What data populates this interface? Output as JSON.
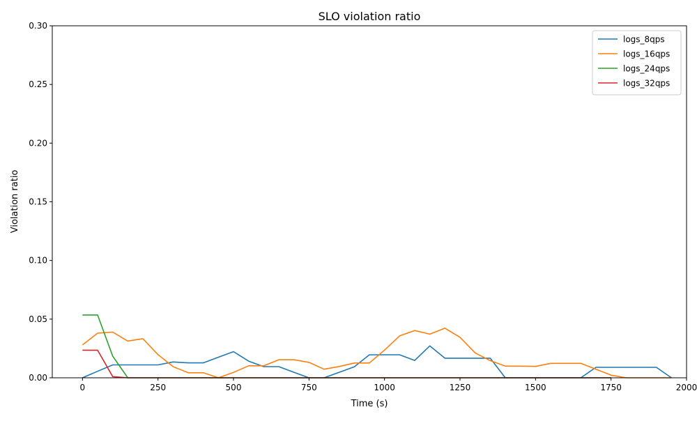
{
  "chart_data": {
    "type": "line",
    "title": "SLO violation ratio",
    "xlabel": "Time (s)",
    "ylabel": "Violation ratio",
    "xlim": [
      -100,
      2000
    ],
    "ylim": [
      0,
      0.3
    ],
    "xticks": [
      0,
      250,
      500,
      750,
      1000,
      1250,
      1500,
      1750,
      2000
    ],
    "yticks": [
      0.0,
      0.05,
      0.1,
      0.15,
      0.2,
      0.25,
      0.3
    ],
    "xtick_labels": [
      "0",
      "250",
      "500",
      "750",
      "1000",
      "1250",
      "1500",
      "1750",
      "2000"
    ],
    "ytick_labels": [
      "0.00",
      "0.05",
      "0.10",
      "0.15",
      "0.20",
      "0.25",
      "0.30"
    ],
    "grid": false,
    "legend_position": "top-right",
    "series": [
      {
        "name": "logs_8qps",
        "color": "#1f77b4",
        "x": [
          0,
          50,
          100,
          150,
          200,
          250,
          300,
          350,
          400,
          450,
          500,
          550,
          600,
          650,
          700,
          750,
          800,
          850,
          900,
          950,
          1000,
          1050,
          1100,
          1150,
          1200,
          1250,
          1300,
          1350,
          1400,
          1450,
          1500,
          1550,
          1600,
          1650,
          1700,
          1750,
          1800,
          1850,
          1900,
          1950
        ],
        "values": [
          0.0,
          0.0055,
          0.011,
          0.011,
          0.011,
          0.011,
          0.0135,
          0.0127,
          0.0127,
          0.0175,
          0.0223,
          0.0142,
          0.0095,
          0.0095,
          0.0047,
          0.0,
          0.0,
          0.0047,
          0.0093,
          0.0196,
          0.0196,
          0.0196,
          0.0148,
          0.0272,
          0.0167,
          0.0167,
          0.0167,
          0.0167,
          0.0,
          0.0,
          0.0,
          0.0,
          0.0,
          0.0,
          0.0089,
          0.0089,
          0.0089,
          0.0089,
          0.0089,
          0.0
        ]
      },
      {
        "name": "logs_16qps",
        "color": "#ff7f0e",
        "x": [
          0,
          50,
          100,
          150,
          200,
          250,
          300,
          350,
          400,
          450,
          500,
          550,
          600,
          650,
          700,
          750,
          800,
          850,
          900,
          950,
          1000,
          1050,
          1100,
          1150,
          1200,
          1250,
          1300,
          1350,
          1400,
          1450,
          1500,
          1550,
          1600,
          1650,
          1700,
          1750,
          1800,
          1850,
          1900,
          1950
        ],
        "values": [
          0.028,
          0.038,
          0.039,
          0.0313,
          0.0333,
          0.0197,
          0.0095,
          0.0043,
          0.0043,
          0.0,
          0.0046,
          0.0102,
          0.0102,
          0.0154,
          0.0154,
          0.0131,
          0.0073,
          0.0096,
          0.0126,
          0.0126,
          0.0236,
          0.0357,
          0.0403,
          0.0372,
          0.0423,
          0.0345,
          0.0212,
          0.0146,
          0.0099,
          0.0099,
          0.0097,
          0.0123,
          0.0123,
          0.0123,
          0.0073,
          0.0022,
          0.0,
          0.0,
          0.0,
          0.0
        ]
      },
      {
        "name": "logs_24qps",
        "color": "#2ca02c",
        "x": [
          0,
          50,
          100,
          150,
          200,
          250,
          300,
          350,
          400,
          450,
          500,
          550,
          600,
          650,
          700,
          750,
          800,
          850,
          900,
          950,
          1000,
          1050,
          1100,
          1150,
          1200,
          1250,
          1300,
          1350,
          1400,
          1450,
          1500,
          1550,
          1600,
          1650,
          1700,
          1750
        ],
        "values": [
          0.0535,
          0.0535,
          0.0185,
          0.0,
          0.0,
          0.0,
          0.0,
          0.0,
          0.0,
          0.0,
          0.0,
          0.0,
          0.0,
          0.0,
          0.0,
          0.0,
          0.0,
          0.0,
          0.0,
          0.0,
          0.0,
          0.0,
          0.0,
          0.0,
          0.0,
          0.0,
          0.0,
          0.0,
          0.0,
          0.0,
          0.0,
          0.0,
          0.0,
          0.0,
          0.0,
          0.0
        ]
      },
      {
        "name": "logs_32qps",
        "color": "#d62728",
        "x": [
          0,
          50,
          100,
          150,
          200,
          250,
          300,
          350,
          400,
          450,
          500,
          550,
          600,
          650,
          700,
          750,
          800,
          850,
          900,
          950,
          1000,
          1050,
          1100,
          1150,
          1200,
          1250,
          1300,
          1350,
          1400,
          1450,
          1500,
          1550,
          1600,
          1650,
          1700,
          1750
        ],
        "values": [
          0.0235,
          0.0235,
          0.001,
          0.0,
          0.0,
          0.0,
          0.0,
          0.0,
          0.0,
          0.0,
          0.0,
          0.0,
          0.0,
          0.0,
          0.0,
          0.0,
          0.0,
          0.0,
          0.0,
          0.0,
          0.0,
          0.0,
          0.0,
          0.0,
          0.0,
          0.0,
          0.0,
          0.0,
          0.0,
          0.0,
          0.0,
          0.0,
          0.0,
          0.0,
          0.0,
          0.0
        ]
      }
    ]
  }
}
